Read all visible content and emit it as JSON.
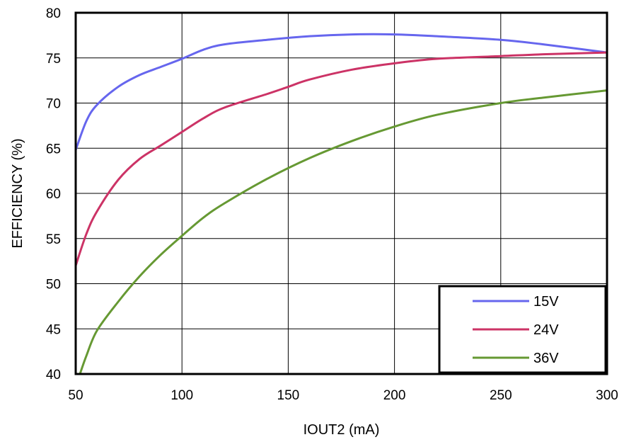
{
  "chart_data": {
    "type": "line",
    "title": "",
    "xlabel": "IOUT2 (mA)",
    "ylabel": "EFFICIENCY (%)",
    "xlim": [
      50,
      300
    ],
    "ylim": [
      40,
      80
    ],
    "x_ticks": [
      50,
      100,
      150,
      200,
      250,
      300
    ],
    "y_ticks": [
      40,
      45,
      50,
      55,
      60,
      65,
      70,
      75,
      80
    ],
    "grid": true,
    "legend_position": "bottom-right",
    "series": [
      {
        "name": "15V",
        "color": "#6666ee",
        "x": [
          50,
          55,
          60,
          70,
          80,
          90,
          100,
          110,
          120,
          140,
          160,
          180,
          200,
          220,
          250,
          270,
          300
        ],
        "y": [
          64.8,
          68.0,
          69.8,
          71.8,
          73.1,
          74.0,
          74.9,
          75.9,
          76.5,
          77.0,
          77.4,
          77.6,
          77.6,
          77.4,
          77.0,
          76.5,
          75.6
        ]
      },
      {
        "name": "24V",
        "color": "#cc3366",
        "x": [
          50,
          55,
          60,
          70,
          80,
          90,
          100,
          110,
          120,
          140,
          150,
          160,
          180,
          200,
          220,
          250,
          270,
          300
        ],
        "y": [
          52.0,
          55.5,
          58.0,
          61.5,
          63.8,
          65.3,
          66.8,
          68.3,
          69.5,
          71.0,
          71.8,
          72.6,
          73.7,
          74.4,
          74.9,
          75.2,
          75.4,
          75.6
        ]
      },
      {
        "name": "36V",
        "color": "#669933",
        "x": [
          52,
          55,
          60,
          70,
          80,
          90,
          100,
          110,
          120,
          140,
          160,
          180,
          200,
          220,
          250,
          270,
          300
        ],
        "y": [
          40.0,
          42.0,
          44.8,
          48.0,
          50.8,
          53.2,
          55.3,
          57.3,
          58.9,
          61.6,
          63.9,
          65.8,
          67.4,
          68.7,
          70.0,
          70.6,
          71.4
        ]
      }
    ]
  }
}
